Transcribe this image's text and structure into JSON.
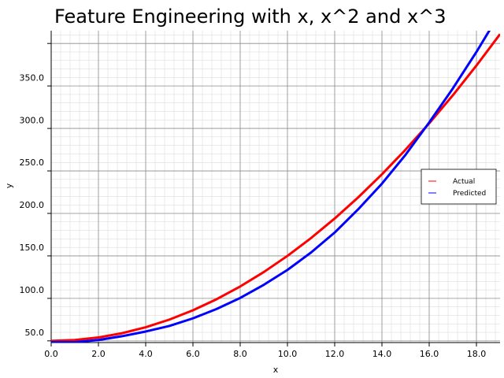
{
  "chart_data": {
    "type": "line",
    "title": "Feature Engineering with x, x^2 and x^3",
    "xlabel": "x",
    "ylabel": "y",
    "xlim": [
      0,
      19
    ],
    "ylim": [
      38,
      405
    ],
    "grid": true,
    "minor_grid": true,
    "legend_position": "right",
    "x_ticks": [
      0,
      2,
      4,
      6,
      8,
      10,
      12,
      14,
      16,
      18
    ],
    "x_tick_labels": [
      "0.0",
      "2.0",
      "4.0",
      "6.0",
      "8.0",
      "10.0",
      "12.0",
      "14.0",
      "16.0",
      "18.0"
    ],
    "y_ticks": [
      50,
      100,
      150,
      200,
      250,
      300,
      350
    ],
    "y_tick_labels": [
      "50.0",
      "100.0",
      "150.0",
      "200.0",
      "250.0",
      "300.0",
      "350.0"
    ],
    "x": [
      0,
      1,
      2,
      3,
      4,
      5,
      6,
      7,
      8,
      9,
      10,
      11,
      12,
      13,
      14,
      15,
      16,
      17,
      18,
      19
    ],
    "series": [
      {
        "name": "Actual",
        "color": "#ff0000",
        "values": [
          40,
          41,
          44,
          49,
          56,
          65,
          76,
          89,
          104,
          121,
          140,
          161,
          184,
          209,
          236,
          265,
          296,
          329,
          364,
          401
        ]
      },
      {
        "name": "Predicted",
        "color": "#0000ff",
        "values": [
          38.5,
          38.5,
          41,
          45.5,
          51,
          57.5,
          66.5,
          77.5,
          90.5,
          106,
          123.5,
          144,
          167.5,
          195,
          225,
          259,
          297,
          337,
          380,
          426
        ]
      }
    ]
  }
}
